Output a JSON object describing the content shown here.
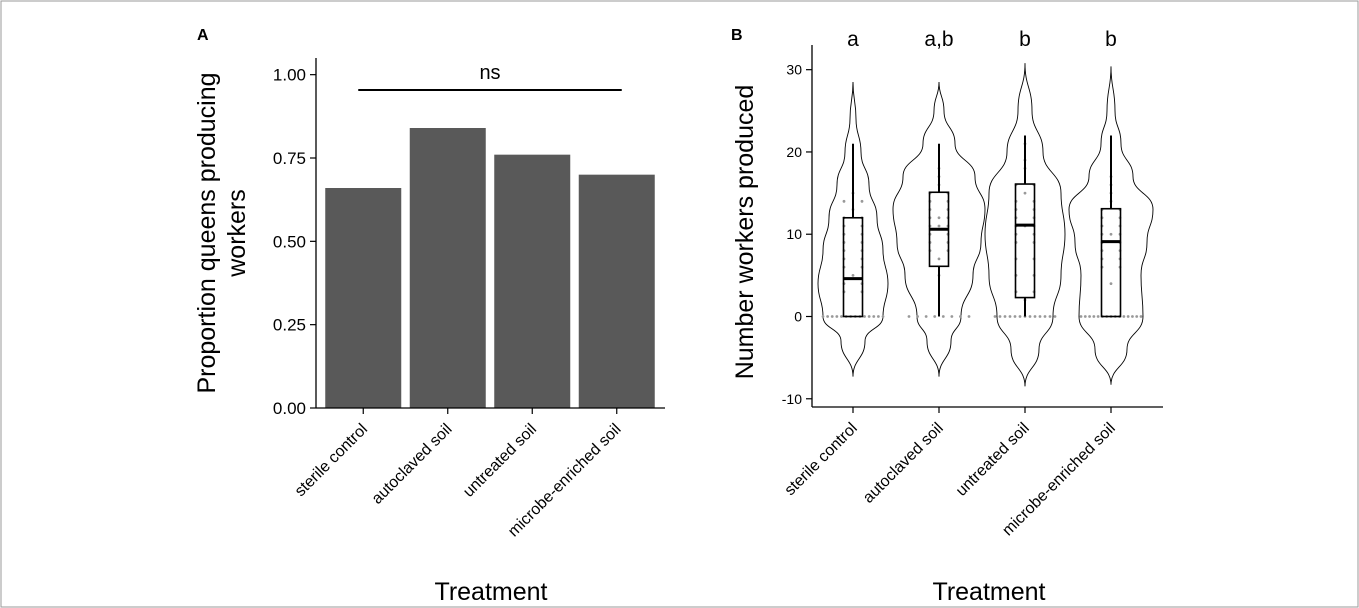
{
  "colors": {
    "bar": "#595959",
    "axis": "#000000",
    "point": "#999999",
    "frame": "#9a9a9a"
  },
  "chart_data": [
    {
      "panel": "A",
      "type": "bar",
      "categories": [
        "sterile control",
        "autoclaved soil",
        "untreated soil",
        "microbe-enriched soil"
      ],
      "values": [
        0.66,
        0.84,
        0.76,
        0.7
      ],
      "xlabel": "Treatment",
      "ylabel": "Proportion queens producing workers",
      "ylim": [
        0,
        1.05
      ],
      "yticks": [
        "0.00",
        "0.25",
        "0.50",
        "0.75",
        "1.00"
      ],
      "annotation": "ns",
      "grid": false
    },
    {
      "panel": "B",
      "type": "violin",
      "categories": [
        "sterile control",
        "autoclaved soil",
        "untreated soil",
        "microbe-enriched soil"
      ],
      "xlabel": "Treatment",
      "ylabel": "Number workers produced",
      "ylim": [
        -11,
        33
      ],
      "yticks": [
        "-10",
        "0",
        "10",
        "20",
        "30"
      ],
      "grid": false,
      "groups": [
        {
          "label": "a",
          "violin_range": [
            -7.3,
            28.5
          ],
          "box": {
            "min": 0,
            "q1": 0,
            "median": 4.6,
            "q3": 12,
            "max": 21
          }
        },
        {
          "label": "a,b",
          "violin_range": [
            -7.3,
            28.5
          ],
          "box": {
            "min": 0,
            "q1": 6.1,
            "median": 10.6,
            "q3": 15.1,
            "max": 21
          }
        },
        {
          "label": "b",
          "violin_range": [
            -8.5,
            30.8
          ],
          "box": {
            "min": 0,
            "q1": 2.3,
            "median": 11.1,
            "q3": 16.1,
            "max": 22
          }
        },
        {
          "label": "b",
          "violin_range": [
            -8.3,
            30.4
          ],
          "box": {
            "min": 0,
            "q1": 0,
            "median": 9.1,
            "q3": 13.1,
            "max": 22
          }
        }
      ]
    }
  ]
}
